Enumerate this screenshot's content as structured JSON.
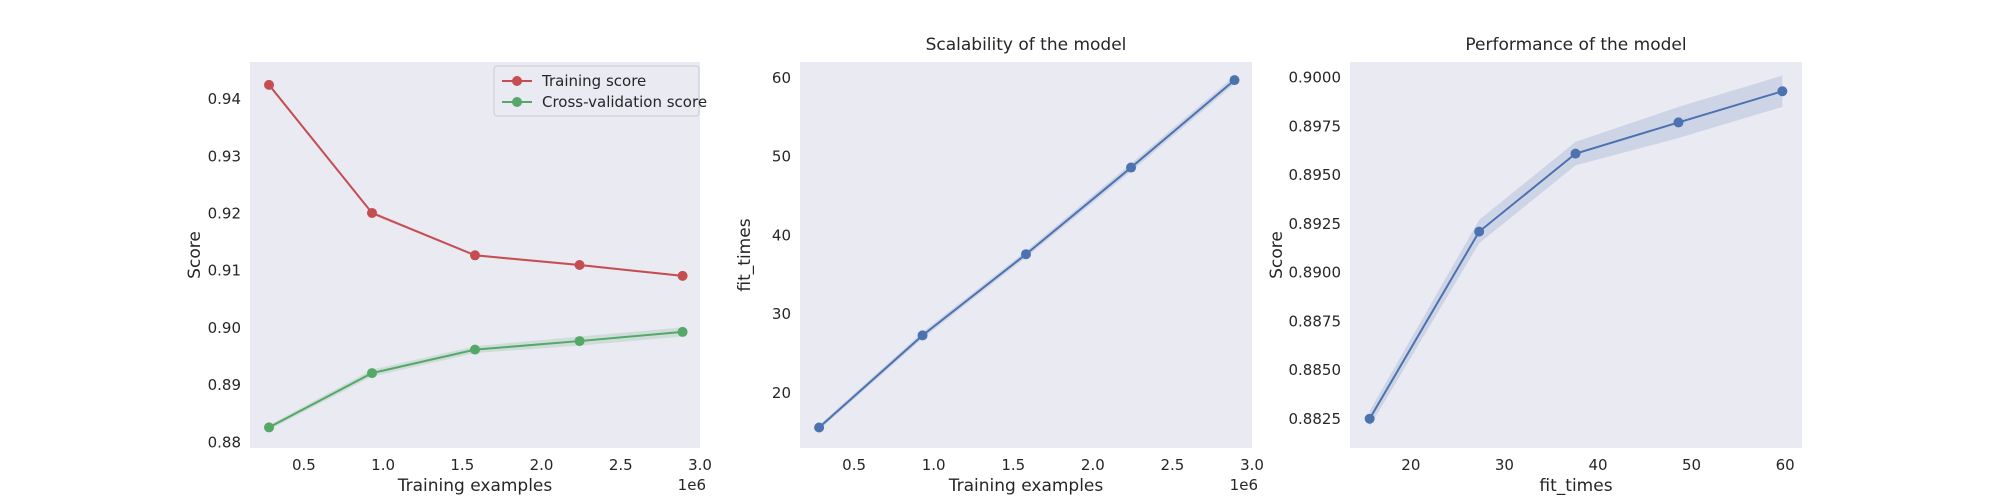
{
  "chart_data": [
    {
      "type": "line",
      "title": "",
      "xlabel": "Training examples",
      "ylabel": "Score",
      "x_offset_label": "1e6",
      "x_scale_note": "x values in units of 1e6",
      "x": [
        0.28,
        0.93,
        1.58,
        2.24,
        2.89
      ],
      "xlim": [
        0.16,
        3.0
      ],
      "ylim": [
        0.879,
        0.9465
      ],
      "xticks": [
        0.5,
        1.0,
        1.5,
        2.0,
        2.5,
        3.0
      ],
      "xtick_labels": [
        "0.5",
        "1.0",
        "1.5",
        "2.0",
        "2.5",
        "3.0"
      ],
      "yticks": [
        0.88,
        0.89,
        0.9,
        0.91,
        0.92,
        0.93,
        0.94
      ],
      "ytick_labels": [
        "0.88",
        "0.89",
        "0.90",
        "0.91",
        "0.92",
        "0.93",
        "0.94"
      ],
      "grid": false,
      "legend": "top-right",
      "series": [
        {
          "name": "Training score",
          "values": [
            0.9425,
            0.9201,
            0.9127,
            0.911,
            0.9091
          ],
          "std": [
            0.0003,
            0.0003,
            0.0002,
            0.0002,
            0.0002
          ],
          "color": "#c44e52"
        },
        {
          "name": "Cross-validation score",
          "values": [
            0.8826,
            0.8921,
            0.8962,
            0.8977,
            0.8993
          ],
          "std": [
            0.0004,
            0.0006,
            0.0006,
            0.0008,
            0.0008
          ],
          "color": "#55a868"
        }
      ]
    },
    {
      "type": "line",
      "title": "Scalability of the model",
      "xlabel": "Training examples",
      "ylabel": "fit_times",
      "x_offset_label": "1e6",
      "x_scale_note": "x values in units of 1e6",
      "x": [
        0.28,
        0.93,
        1.58,
        2.24,
        2.89
      ],
      "xlim": [
        0.16,
        3.0
      ],
      "ylim": [
        13.0,
        62.0
      ],
      "xticks": [
        0.5,
        1.0,
        1.5,
        2.0,
        2.5,
        3.0
      ],
      "xtick_labels": [
        "0.5",
        "1.0",
        "1.5",
        "2.0",
        "2.5",
        "3.0"
      ],
      "yticks": [
        20,
        30,
        40,
        50,
        60
      ],
      "ytick_labels": [
        "20",
        "30",
        "40",
        "50",
        "60"
      ],
      "grid": false,
      "series": [
        {
          "values": [
            15.6,
            27.3,
            37.6,
            48.6,
            59.7
          ],
          "std": [
            0.3,
            0.4,
            0.4,
            0.5,
            0.5
          ],
          "color": "#4c72b0"
        }
      ]
    },
    {
      "type": "line",
      "title": "Performance of the model",
      "xlabel": "fit_times",
      "ylabel": "Score",
      "x": [
        15.6,
        27.3,
        37.6,
        48.6,
        59.7
      ],
      "xlim": [
        13.5,
        61.8
      ],
      "ylim": [
        0.881,
        0.9008
      ],
      "xticks": [
        20,
        30,
        40,
        50,
        60
      ],
      "xtick_labels": [
        "20",
        "30",
        "40",
        "50",
        "60"
      ],
      "yticks": [
        0.8825,
        0.885,
        0.8875,
        0.89,
        0.8925,
        0.895,
        0.8975,
        0.9
      ],
      "ytick_labels": [
        "0.8825",
        "0.8850",
        "0.8875",
        "0.8900",
        "0.8925",
        "0.8950",
        "0.8975",
        "0.9000"
      ],
      "grid": false,
      "series": [
        {
          "values": [
            0.8825,
            0.8921,
            0.8961,
            0.8977,
            0.8993
          ],
          "std": [
            0.0004,
            0.0006,
            0.0006,
            0.0008,
            0.0008
          ],
          "color": "#4c72b0"
        }
      ]
    }
  ],
  "style": {
    "axes_bg": "#eaeaf2",
    "band_alpha": 0.18
  }
}
